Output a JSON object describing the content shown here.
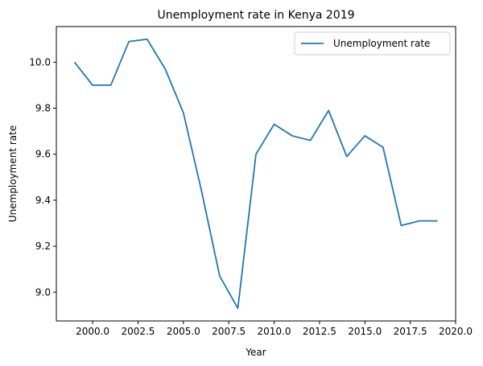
{
  "chart_data": {
    "type": "line",
    "title": "Unemployment rate in Kenya 2019",
    "xlabel": "Year",
    "ylabel": "Unemployment rate",
    "xlim": [
      1998,
      2020
    ],
    "ylim": [
      8.875,
      10.155
    ],
    "xticks": [
      2000.0,
      2002.5,
      2005.0,
      2007.5,
      2010.0,
      2012.5,
      2015.0,
      2017.5,
      2020.0
    ],
    "xtick_labels": [
      "2000.0",
      "2002.5",
      "2005.0",
      "2007.5",
      "2010.0",
      "2012.5",
      "2015.0",
      "2017.5",
      "2020.0"
    ],
    "yticks": [
      9.0,
      9.2,
      9.4,
      9.6,
      9.8,
      10.0
    ],
    "ytick_labels": [
      "9.0",
      "9.2",
      "9.4",
      "9.6",
      "9.8",
      "10.0"
    ],
    "grid": false,
    "legend_position": "top-right",
    "x": [
      1999,
      2000,
      2001,
      2002,
      2003,
      2004,
      2005,
      2006,
      2007,
      2008,
      2009,
      2010,
      2011,
      2012,
      2013,
      2014,
      2015,
      2016,
      2017,
      2018,
      2019
    ],
    "series": [
      {
        "name": "Unemployment rate",
        "color": "#1f77b4",
        "values": [
          10.0,
          9.9,
          9.9,
          10.09,
          10.1,
          9.97,
          9.78,
          9.44,
          9.07,
          8.93,
          9.6,
          9.73,
          9.68,
          9.66,
          9.79,
          9.59,
          9.68,
          9.63,
          9.29,
          9.31,
          9.31
        ]
      }
    ]
  }
}
